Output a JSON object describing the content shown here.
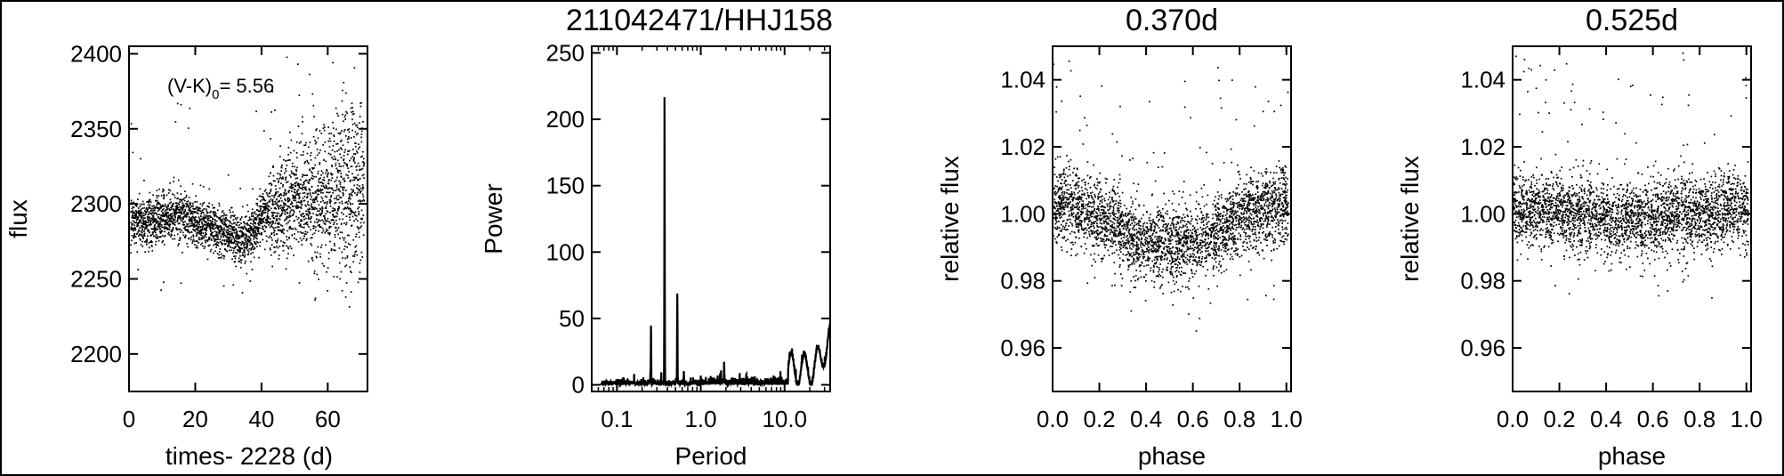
{
  "chart_data": [
    {
      "type": "scatter",
      "title": "",
      "xlabel": "times- 2228 (d)",
      "ylabel": "flux",
      "xlim": [
        0,
        72
      ],
      "ylim": [
        2175,
        2405
      ],
      "xticks": [
        0,
        20,
        40,
        60
      ],
      "xtick_labels": [
        "0",
        "20",
        "40",
        "60"
      ],
      "yticks": [
        2200,
        2250,
        2300,
        2350,
        2400
      ],
      "ytick_labels": [
        "2200",
        "2250",
        "2300",
        "2350",
        "2400"
      ],
      "annotation": {
        "prefix": "(V-K)",
        "subscript": "0",
        "suffix": "= 5.56"
      },
      "trend": {
        "x": [
          0,
          5,
          10,
          15,
          20,
          25,
          30,
          33,
          37,
          40,
          45,
          50,
          55,
          60,
          65,
          70
        ],
        "y": [
          2290,
          2288,
          2292,
          2293,
          2288,
          2285,
          2281,
          2276,
          2280,
          2293,
          2298,
          2305,
          2300,
          2306,
          2310,
          2312
        ]
      },
      "n_points": 3100,
      "grid": false,
      "legend": "none"
    },
    {
      "type": "line",
      "title": "211042471/HHJ158",
      "xlabel": "Period",
      "ylabel": "Power",
      "xscale": "log",
      "xlim": [
        0.05,
        35
      ],
      "ylim": [
        -5,
        255
      ],
      "xticks": [
        0.1,
        1.0,
        10.0
      ],
      "xtick_labels": [
        "0.1",
        "1.0",
        "10.0"
      ],
      "yticks": [
        0,
        50,
        100,
        150,
        200,
        250
      ],
      "ytick_labels": [
        "0",
        "50",
        "100",
        "150",
        "200",
        "250"
      ],
      "peaks": [
        {
          "period": 0.255,
          "power": 43
        },
        {
          "period": 0.37,
          "power": 215
        },
        {
          "period": 0.525,
          "power": 68
        },
        {
          "period": 0.63,
          "power": 8
        },
        {
          "period": 1.0,
          "power": 5
        },
        {
          "period": 1.9,
          "power": 15
        },
        {
          "period": 3.5,
          "power": 6
        }
      ],
      "grid": false,
      "legend": "none"
    },
    {
      "type": "scatter",
      "title": "0.370d",
      "xlabel": "phase",
      "ylabel": "relative flux",
      "xlim": [
        0,
        1.02
      ],
      "ylim": [
        0.947,
        1.05
      ],
      "xticks": [
        0.0,
        0.2,
        0.4,
        0.6,
        0.8,
        1.0
      ],
      "xtick_labels": [
        "0.0",
        "0.2",
        "0.4",
        "0.6",
        "0.8",
        "1.0"
      ],
      "yticks": [
        0.96,
        0.98,
        1.0,
        1.02,
        1.04
      ],
      "ytick_labels": [
        "0.96",
        "0.98",
        "1.00",
        "1.02",
        "1.04"
      ],
      "period_days": 0.37,
      "amplitude": 0.006,
      "n_points": 3100,
      "grid": false,
      "legend": "none"
    },
    {
      "type": "scatter",
      "title": "0.525d",
      "xlabel": "phase",
      "ylabel": "relative flux",
      "xlim": [
        0,
        1.02
      ],
      "ylim": [
        0.947,
        1.05
      ],
      "xticks": [
        0.0,
        0.2,
        0.4,
        0.6,
        0.8,
        1.0
      ],
      "xtick_labels": [
        "0.0",
        "0.2",
        "0.4",
        "0.6",
        "0.8",
        "1.0"
      ],
      "yticks": [
        0.96,
        0.98,
        1.0,
        1.02,
        1.04
      ],
      "ytick_labels": [
        "0.96",
        "0.98",
        "1.00",
        "1.02",
        "1.04"
      ],
      "period_days": 0.525,
      "amplitude": 0.0015,
      "n_points": 3100,
      "grid": false,
      "legend": "none"
    }
  ]
}
